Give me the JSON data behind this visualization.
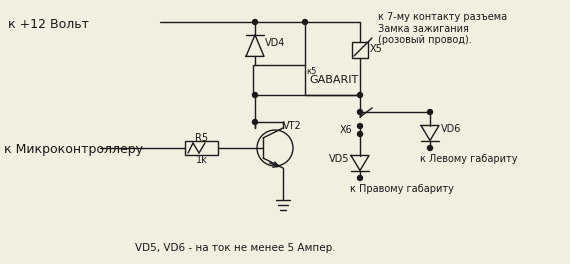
{
  "bg_color": "#f0efe0",
  "line_color": "#1a1a1a",
  "text_color": "#1a1a1a",
  "figsize": [
    5.7,
    2.64
  ],
  "dpi": 100,
  "labels": {
    "plus12v": "к +12 Вольт",
    "microcontroller": "к Микроконтроллеру",
    "ignition": "к 7-му контакту разъема\nЗамка зажигания\n(розовый провод).",
    "gabarit": "GABARIT",
    "left_gabarit": "к Левому габариту",
    "right_gabarit": "к Правому габариту",
    "vd4": "VD4",
    "vd5": "VD5",
    "vd6": "VD6",
    "vt2": "VT2",
    "r5": "R5",
    "r5_val": "1k",
    "x5": "X5",
    "x6": "X6",
    "kb": "к5",
    "footer": "VD5, VD6 - на ток не менее 5 Ампер."
  }
}
